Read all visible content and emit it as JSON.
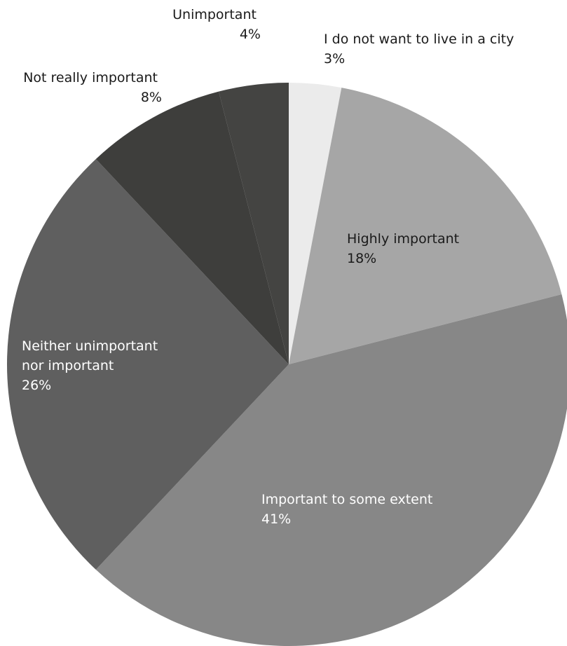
{
  "chart_data": {
    "type": "pie",
    "title": "",
    "slices": [
      {
        "label": "I do not want to live in a city",
        "value": 3,
        "value_label": "3%",
        "color": "#ebebeb"
      },
      {
        "label": "Highly important",
        "value": 18,
        "value_label": "18%",
        "color": "#a6a6a6"
      },
      {
        "label": "Important to some extent",
        "value": 41,
        "value_label": "41%",
        "color": "#878787"
      },
      {
        "label": "Neither unimportant nor important",
        "value": 26,
        "value_label": "26%",
        "color": "#5f5f5f"
      },
      {
        "label": "Not really important",
        "value": 8,
        "value_label": "8%",
        "color": "#3e3e3c"
      },
      {
        "label": "Unimportant",
        "value": 4,
        "value_label": "4%",
        "color": "#444442"
      }
    ]
  }
}
